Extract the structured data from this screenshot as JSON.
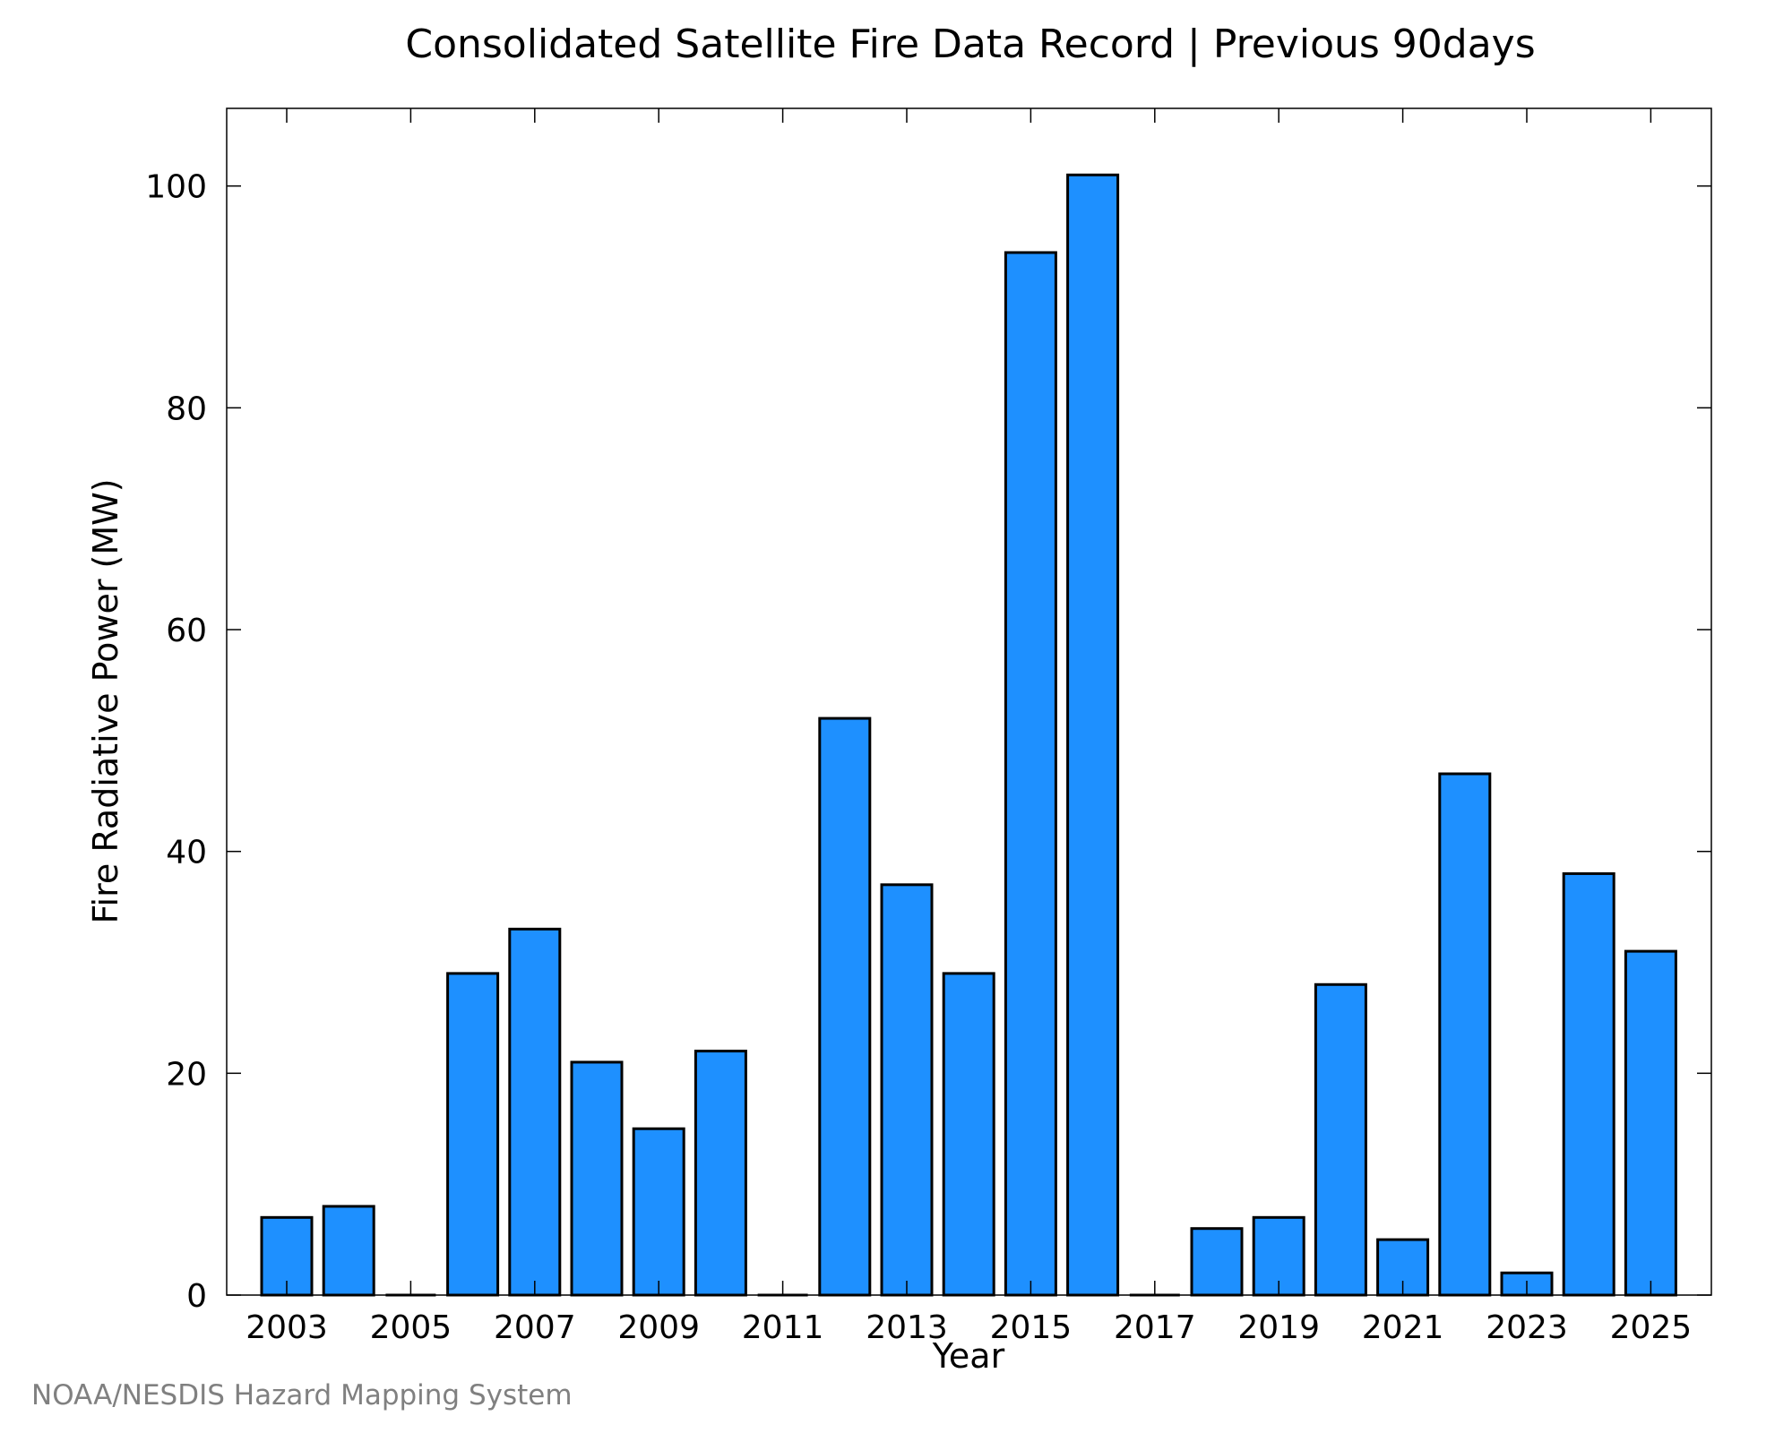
{
  "credit": "NOAA/NESDIS Hazard Mapping System",
  "chart_data": {
    "type": "bar",
    "title": "Consolidated Satellite Fire Data Record | Previous 90days",
    "xlabel": "Year",
    "ylabel": "Fire Radiative Power (MW)",
    "categories": [
      "2003",
      "2004",
      "2005",
      "2006",
      "2007",
      "2008",
      "2009",
      "2010",
      "2011",
      "2012",
      "2013",
      "2014",
      "2015",
      "2016",
      "2017",
      "2018",
      "2019",
      "2020",
      "2021",
      "2022",
      "2023",
      "2024",
      "2025"
    ],
    "values": [
      7,
      8,
      0,
      29,
      33,
      21,
      15,
      22,
      0,
      52,
      37,
      29,
      94,
      101,
      0,
      6,
      7,
      28,
      5,
      47,
      2,
      38,
      31
    ],
    "x_tick_labels": [
      "2003",
      "2005",
      "2007",
      "2009",
      "2011",
      "2013",
      "2015",
      "2017",
      "2019",
      "2021",
      "2023",
      "2025"
    ],
    "y_ticks": [
      0,
      20,
      40,
      60,
      80,
      100
    ],
    "ylim": [
      0,
      107
    ],
    "bar_color": "#1e90ff",
    "grid": false
  }
}
